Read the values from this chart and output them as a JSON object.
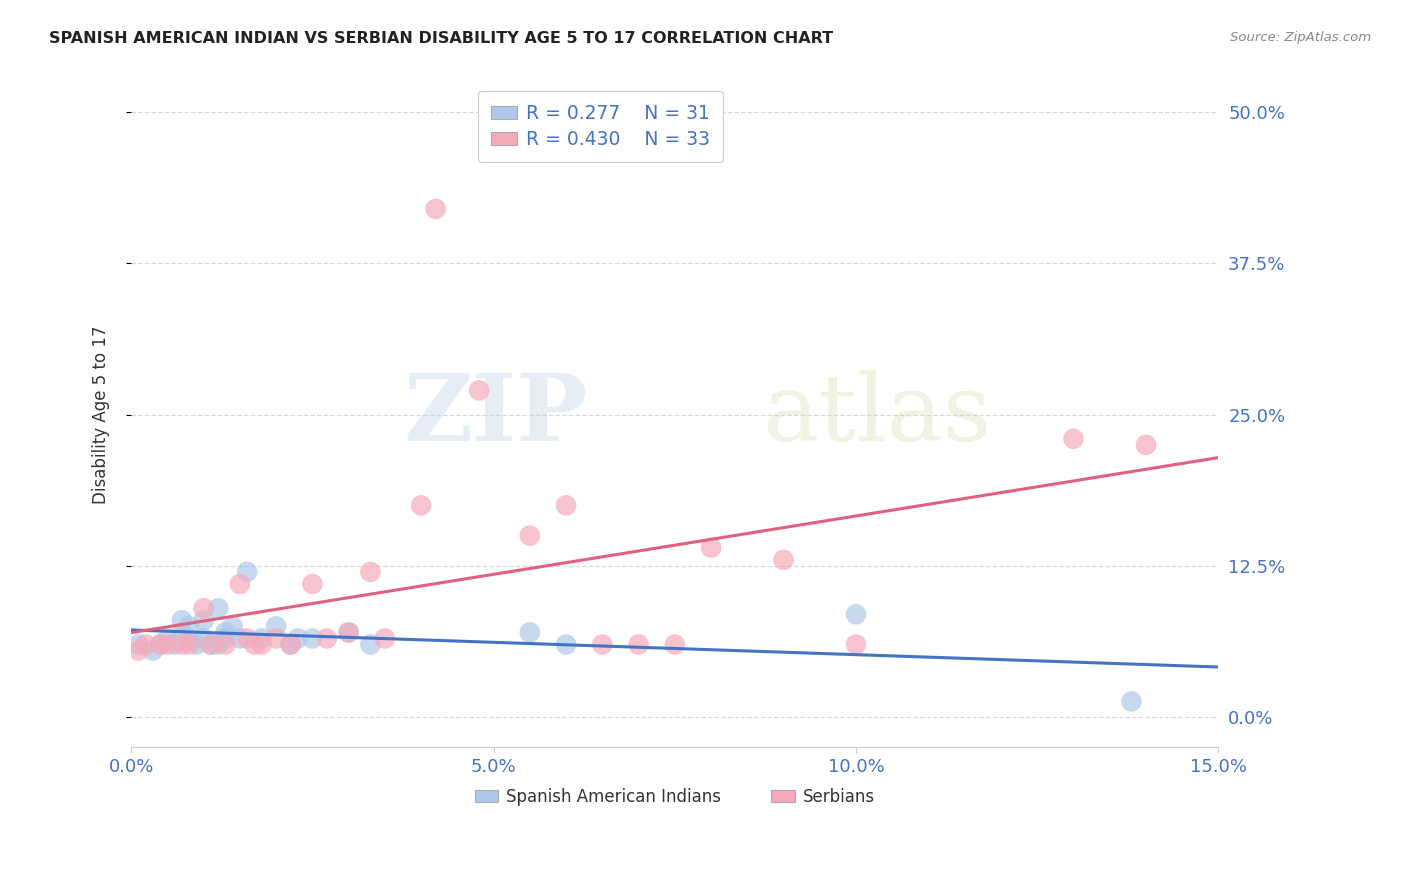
{
  "title": "SPANISH AMERICAN INDIAN VS SERBIAN DISABILITY AGE 5 TO 17 CORRELATION CHART",
  "source": "Source: ZipAtlas.com",
  "ylabel": "Disability Age 5 to 17",
  "xlim": [
    0.0,
    0.15
  ],
  "ylim": [
    -0.025,
    0.525
  ],
  "ytick_positions": [
    0.0,
    0.125,
    0.25,
    0.375,
    0.5
  ],
  "ytick_labels": [
    "0.0%",
    "12.5%",
    "25.0%",
    "37.5%",
    "50.0%"
  ],
  "xtick_positions": [
    0.0,
    0.05,
    0.1,
    0.15
  ],
  "xtick_labels": [
    "0.0%",
    "5.0%",
    "10.0%",
    "15.0%"
  ],
  "blue_R": 0.277,
  "blue_N": 31,
  "pink_R": 0.43,
  "pink_N": 33,
  "blue_color": "#adc8e8",
  "pink_color": "#f5aabb",
  "blue_line_color": "#4472c4",
  "pink_line_color": "#e06080",
  "legend_label_blue": "Spanish American Indians",
  "legend_label_pink": "Serbians",
  "blue_points_x": [
    0.001,
    0.003,
    0.004,
    0.005,
    0.006,
    0.007,
    0.007,
    0.008,
    0.008,
    0.009,
    0.01,
    0.01,
    0.011,
    0.012,
    0.012,
    0.013,
    0.013,
    0.014,
    0.015,
    0.016,
    0.018,
    0.02,
    0.022,
    0.023,
    0.025,
    0.03,
    0.033,
    0.055,
    0.06,
    0.1,
    0.138
  ],
  "blue_points_y": [
    0.06,
    0.055,
    0.06,
    0.065,
    0.06,
    0.07,
    0.08,
    0.065,
    0.075,
    0.06,
    0.065,
    0.08,
    0.06,
    0.06,
    0.09,
    0.065,
    0.07,
    0.075,
    0.065,
    0.12,
    0.065,
    0.075,
    0.06,
    0.065,
    0.065,
    0.07,
    0.06,
    0.07,
    0.06,
    0.085,
    0.013
  ],
  "pink_points_x": [
    0.001,
    0.002,
    0.004,
    0.005,
    0.007,
    0.008,
    0.01,
    0.011,
    0.013,
    0.015,
    0.016,
    0.017,
    0.018,
    0.02,
    0.022,
    0.025,
    0.027,
    0.03,
    0.033,
    0.035,
    0.04,
    0.042,
    0.048,
    0.055,
    0.06,
    0.065,
    0.07,
    0.075,
    0.08,
    0.09,
    0.1,
    0.13,
    0.14
  ],
  "pink_points_y": [
    0.055,
    0.06,
    0.06,
    0.06,
    0.06,
    0.06,
    0.09,
    0.06,
    0.06,
    0.11,
    0.065,
    0.06,
    0.06,
    0.065,
    0.06,
    0.11,
    0.065,
    0.07,
    0.12,
    0.065,
    0.175,
    0.42,
    0.27,
    0.15,
    0.175,
    0.06,
    0.06,
    0.06,
    0.14,
    0.13,
    0.06,
    0.23,
    0.225
  ],
  "watermark_zip": "ZIP",
  "watermark_atlas": "atlas",
  "background_color": "#ffffff",
  "grid_color": "#d8d8d8",
  "spine_color": "#cccccc"
}
